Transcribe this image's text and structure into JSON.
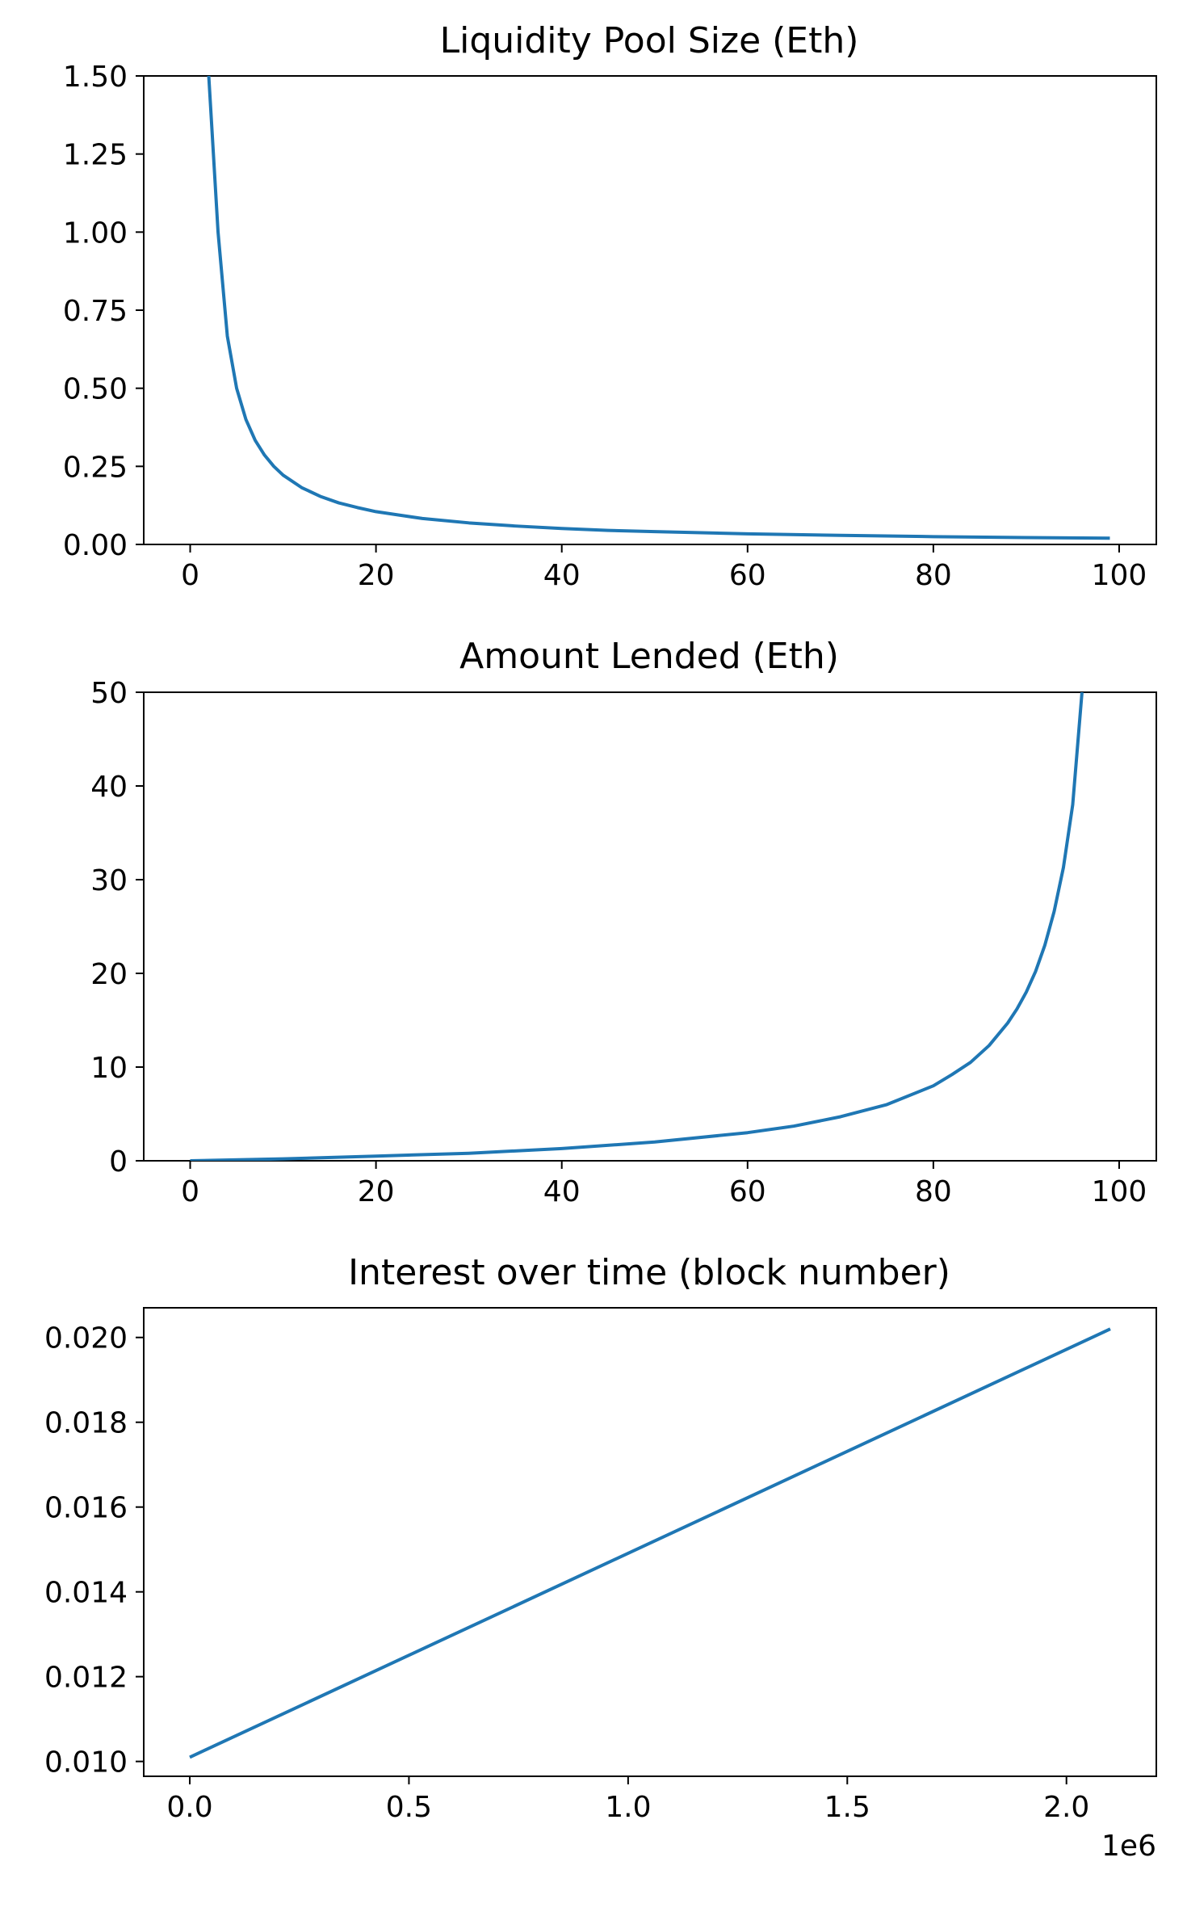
{
  "figure": {
    "line_color": "#1f77b4",
    "background": "#ffffff"
  },
  "chart_data": [
    {
      "type": "line",
      "title": "Liquidity Pool Size (Eth)",
      "xlabel": "",
      "ylabel": "",
      "xlim": [
        -5,
        104
      ],
      "ylim": [
        0,
        1.5
      ],
      "x_ticks": [
        "0",
        "20",
        "40",
        "60",
        "80",
        "100"
      ],
      "y_ticks": [
        "0.00",
        "0.25",
        "0.50",
        "0.75",
        "1.00",
        "1.25",
        "1.50"
      ],
      "grid": false,
      "x": [
        2,
        3,
        4,
        5,
        6,
        7,
        8,
        9,
        10,
        12,
        14,
        16,
        18,
        20,
        25,
        30,
        35,
        40,
        45,
        50,
        60,
        70,
        80,
        90,
        99
      ],
      "y": [
        1.5,
        1.0,
        0.667,
        0.5,
        0.4,
        0.333,
        0.286,
        0.25,
        0.222,
        0.182,
        0.154,
        0.133,
        0.118,
        0.105,
        0.083,
        0.069,
        0.059,
        0.051,
        0.045,
        0.041,
        0.034,
        0.029,
        0.025,
        0.022,
        0.02
      ]
    },
    {
      "type": "line",
      "title": "Amount Lended (Eth)",
      "xlabel": "",
      "ylabel": "",
      "xlim": [
        -5,
        104
      ],
      "ylim": [
        0,
        50
      ],
      "x_ticks": [
        "0",
        "20",
        "40",
        "60",
        "80",
        "100"
      ],
      "y_ticks": [
        "0",
        "10",
        "20",
        "30",
        "40",
        "50"
      ],
      "grid": false,
      "x": [
        0,
        10,
        20,
        30,
        40,
        50,
        60,
        65,
        70,
        75,
        80,
        82,
        84,
        86,
        88,
        89,
        90,
        91,
        92,
        93,
        94,
        95,
        96
      ],
      "y": [
        0,
        0.2,
        0.5,
        0.8,
        1.3,
        2.0,
        3.0,
        3.7,
        4.7,
        6.0,
        8.0,
        9.2,
        10.5,
        12.3,
        14.7,
        16.2,
        18.0,
        20.2,
        23.0,
        26.6,
        31.3,
        38.0,
        50.0
      ]
    },
    {
      "type": "line",
      "title": "Interest over time (block number)",
      "xlabel": "",
      "ylabel": "",
      "xlim": [
        -0.105,
        2.205
      ],
      "ylim": [
        0.00965,
        0.0207
      ],
      "x_ticks": [
        "0.0",
        "0.5",
        "1.0",
        "1.5",
        "2.0"
      ],
      "y_ticks": [
        "0.010",
        "0.012",
        "0.014",
        "0.016",
        "0.018",
        "0.020"
      ],
      "x_offset_label": "1e6",
      "grid": false,
      "x": [
        0,
        2.1
      ],
      "y": [
        0.0101,
        0.0202
      ]
    }
  ]
}
